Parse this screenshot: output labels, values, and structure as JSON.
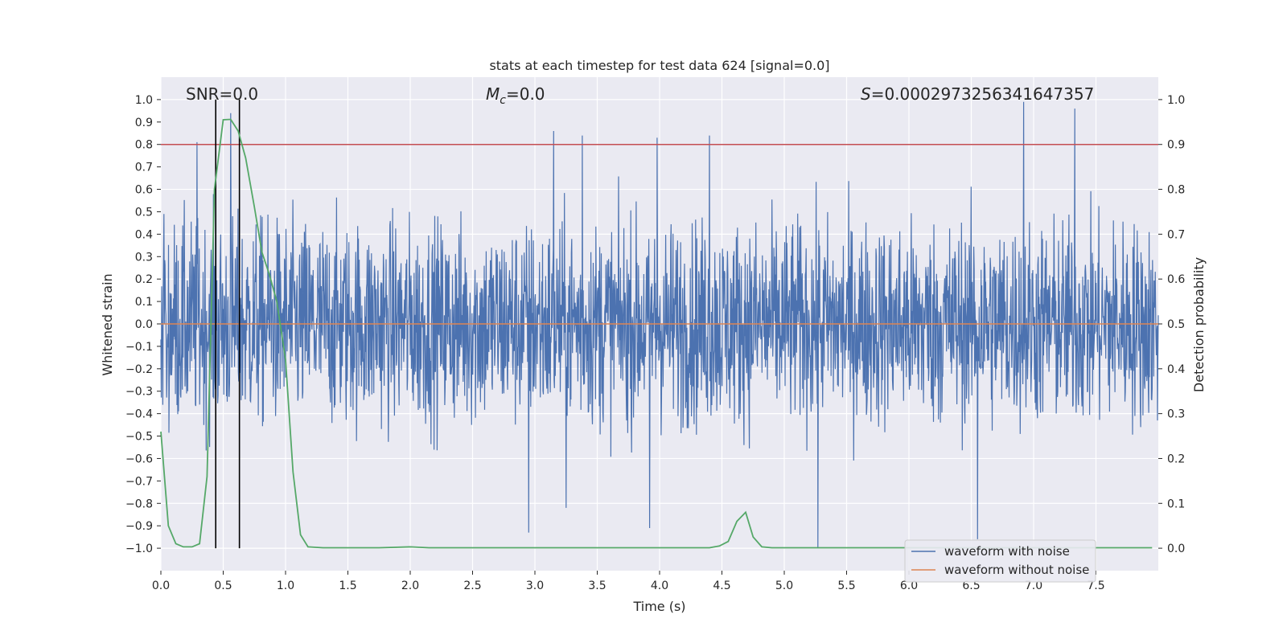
{
  "chart_data": {
    "type": "line",
    "title": "stats at each timestep for test data 624 [signal=0.0]",
    "xlabel": "Time (s)",
    "ylabel_left": "Whitened strain",
    "ylabel_right": "Detection probability",
    "xlim": [
      0.0,
      8.0
    ],
    "ylim_left": [
      -1.1,
      1.1
    ],
    "ylim_right": [
      -0.05,
      1.05
    ],
    "x_ticks": [
      0.0,
      0.5,
      1.0,
      1.5,
      2.0,
      2.5,
      3.0,
      3.5,
      4.0,
      4.5,
      5.0,
      5.5,
      6.0,
      6.5,
      7.0,
      7.5
    ],
    "x_tick_labels": [
      "0.0",
      "0.5",
      "1.0",
      "1.5",
      "2.0",
      "2.5",
      "3.0",
      "3.5",
      "4.0",
      "4.5",
      "5.0",
      "5.5",
      "6.0",
      "6.5",
      "7.0",
      "7.5"
    ],
    "y_left_ticks": [
      1.0,
      0.9,
      0.8,
      0.7,
      0.6,
      0.5,
      0.4,
      0.3,
      0.2,
      0.1,
      0.0,
      -0.1,
      -0.2,
      -0.3,
      -0.4,
      -0.5,
      -0.6,
      -0.7,
      -0.8,
      -0.9,
      -1.0
    ],
    "y_left_tick_labels": [
      "1.0",
      "0.9",
      "0.8",
      "0.7",
      "0.6",
      "0.5",
      "0.4",
      "0.3",
      "0.2",
      "0.1",
      "0.0",
      "−0.1",
      "−0.2",
      "−0.3",
      "−0.4",
      "−0.5",
      "−0.6",
      "−0.7",
      "−0.8",
      "−0.9",
      "−1.0"
    ],
    "y_right_ticks": [
      1.0,
      0.9,
      0.8,
      0.7,
      0.6,
      0.5,
      0.4,
      0.3,
      0.2,
      0.1,
      0.0
    ],
    "y_right_tick_labels": [
      "1.0",
      "0.9",
      "0.8",
      "0.7",
      "0.6",
      "0.5",
      "0.4",
      "0.3",
      "0.2",
      "0.1",
      "0.0"
    ],
    "annotations": {
      "snr_label": "SNR=0.0",
      "mc_symbol": "M",
      "mc_subscript": "c",
      "mc_value": "=0.0",
      "s_symbol": "S",
      "s_value": "=0.0002973256341647357"
    },
    "vertical_lines_x": [
      0.44,
      0.63
    ],
    "threshold_probability": 0.9,
    "series": [
      {
        "name": "waveform with noise",
        "color": "#4c72b0",
        "description": "dense noise trace, typical envelope about ±0.4 with peaks to +0.99 and -1.0",
        "typical_amplitude": 0.45,
        "peaks": [
          {
            "x": 0.29,
            "y": 0.81
          },
          {
            "x": 0.44,
            "y": 0.92
          },
          {
            "x": 0.56,
            "y": 0.94
          },
          {
            "x": 3.15,
            "y": 0.86
          },
          {
            "x": 3.38,
            "y": 0.84
          },
          {
            "x": 3.98,
            "y": 0.83
          },
          {
            "x": 4.4,
            "y": 0.84
          },
          {
            "x": 6.92,
            "y": 0.99
          },
          {
            "x": 7.33,
            "y": 0.96
          },
          {
            "x": 5.27,
            "y": -1.0
          },
          {
            "x": 6.55,
            "y": -0.96
          },
          {
            "x": 3.92,
            "y": -0.91
          },
          {
            "x": 2.95,
            "y": -0.93
          },
          {
            "x": 3.25,
            "y": -0.82
          }
        ]
      },
      {
        "name": "waveform without noise",
        "color": "#dd8452",
        "x": [
          0.0,
          8.0
        ],
        "y": [
          0.0,
          0.0
        ]
      },
      {
        "name": "detection probability",
        "color": "#55a868",
        "axis": "right",
        "x": [
          0.0,
          0.06,
          0.12,
          0.18,
          0.25,
          0.31,
          0.37,
          0.43,
          0.5,
          0.56,
          0.62,
          0.68,
          0.75,
          0.81,
          0.87,
          0.93,
          1.0,
          1.06,
          1.12,
          1.18,
          1.3,
          1.5,
          1.75,
          2.0,
          2.15,
          2.5,
          3.0,
          3.5,
          4.0,
          4.4,
          4.48,
          4.55,
          4.62,
          4.69,
          4.75,
          4.82,
          4.9,
          5.0,
          5.5,
          6.0,
          6.5,
          7.0,
          7.5,
          7.95
        ],
        "y": [
          0.26,
          0.05,
          0.01,
          0.003,
          0.003,
          0.01,
          0.16,
          0.8,
          0.955,
          0.956,
          0.93,
          0.87,
          0.76,
          0.66,
          0.61,
          0.55,
          0.42,
          0.17,
          0.03,
          0.003,
          0.001,
          0.001,
          0.001,
          0.003,
          0.001,
          0.001,
          0.001,
          0.001,
          0.001,
          0.001,
          0.005,
          0.015,
          0.06,
          0.08,
          0.025,
          0.003,
          0.001,
          0.001,
          0.001,
          0.001,
          0.001,
          0.001,
          0.001,
          0.001
        ]
      }
    ],
    "legend": {
      "position": "lower-right",
      "entries": [
        {
          "label": "waveform with noise",
          "color": "#4c72b0"
        },
        {
          "label": "waveform without noise",
          "color": "#dd8452"
        }
      ]
    },
    "colors": {
      "plot_background": "#eaeaf2",
      "grid": "#ffffff",
      "threshold_line": "#c44e52",
      "marker_lines": "#000000"
    }
  }
}
